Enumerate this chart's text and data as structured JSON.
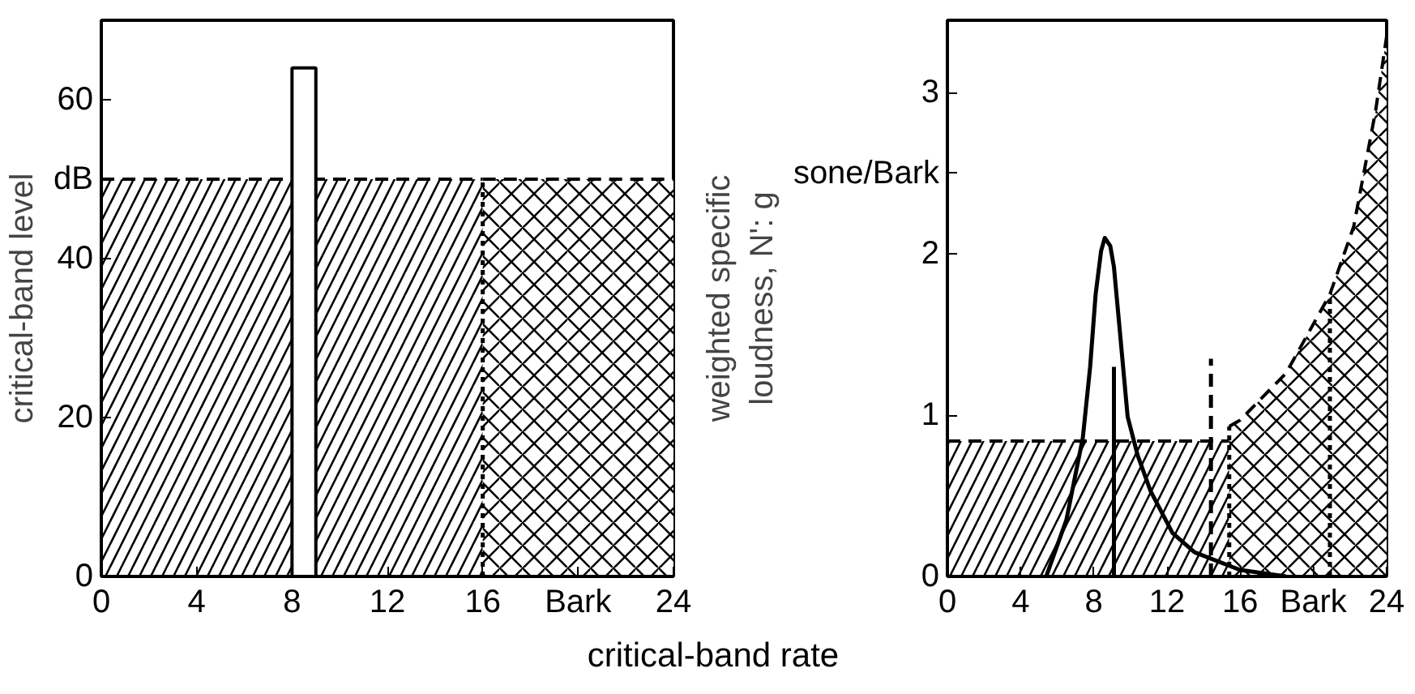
{
  "chart_data": [
    {
      "type": "area",
      "ylabel": "critical-band level",
      "xlabel": "critical-band rate",
      "xlim": [
        0,
        24
      ],
      "ylim": [
        0,
        70
      ],
      "xticks": [
        0,
        4,
        8,
        12,
        16,
        {
          "value": 20,
          "label": "Bark"
        },
        24
      ],
      "yticks": [
        0,
        20,
        40,
        {
          "value": 50,
          "label": "dB"
        },
        60
      ],
      "series": [
        {
          "x": [
            0,
            16
          ],
          "values": [
            50,
            50
          ],
          "color": "#000000",
          "line_style": "dashed"
        },
        {
          "x": [
            16,
            24
          ],
          "values": [
            50,
            50
          ],
          "color": "#000000",
          "line_style": "dashed"
        },
        {
          "type": "bar",
          "x": [
            8.5
          ],
          "values": [
            64
          ],
          "color": "#000000"
        },
        {
          "type": "line",
          "x": [
            16,
            16
          ],
          "values": [
            0,
            50
          ],
          "color": "#000000",
          "line_style": "dotted"
        }
      ]
    },
    {
      "type": "area",
      "ylabel": "weighted specific\nloudness, N': g",
      "xlim": [
        0,
        24
      ],
      "ylim": [
        0,
        3.45
      ],
      "xticks": [
        0,
        4,
        8,
        12,
        16,
        {
          "value": 20,
          "label": "Bark"
        },
        24
      ],
      "yticks": [
        0,
        1,
        2,
        {
          "value": 2.5,
          "label": "sone/Bark"
        },
        3
      ],
      "series": [
        {
          "x": [
            0,
            15.4
          ],
          "values": [
            0.84,
            0.84
          ],
          "color": "#000000",
          "line_style": "dashed"
        },
        {
          "x": [
            15.4,
            16,
            18.5,
            20.9,
            22.2,
            23.4,
            24
          ],
          "values": [
            0.93,
            0.97,
            1.26,
            1.75,
            2.17,
            2.89,
            3.35
          ],
          "color": "#000000",
          "line_style": "dashed"
        },
        {
          "type": "line",
          "x": [
            5.4,
            6.5,
            7.4,
            7.8,
            8.1,
            8.4,
            8.6,
            8.9,
            9.1,
            9.4,
            9.85,
            10.4,
            11.1,
            12.3,
            13.5,
            16,
            18.5
          ],
          "values": [
            0,
            0.35,
            0.86,
            1.3,
            1.75,
            2.02,
            2.1,
            2.05,
            1.92,
            1.55,
            0.99,
            0.75,
            0.53,
            0.27,
            0.15,
            0.04,
            0
          ],
          "color": "#000000",
          "line_style": "solid"
        },
        {
          "type": "line",
          "x": [
            9.1,
            9.1
          ],
          "values": [
            0,
            1.3
          ],
          "color": "#000000",
          "line_style": "solid"
        },
        {
          "type": "line",
          "x": [
            14.4,
            14.4
          ],
          "values": [
            0,
            1.35
          ],
          "color": "#000000",
          "line_style": "dashed"
        },
        {
          "type": "line",
          "x": [
            15.4,
            15.4
          ],
          "values": [
            0,
            0.93
          ],
          "color": "#000000",
          "line_style": "dotted"
        },
        {
          "type": "line",
          "x": [
            20.9,
            20.9
          ],
          "values": [
            0,
            1.75
          ],
          "color": "#000000",
          "line_style": "dotted"
        }
      ]
    }
  ]
}
